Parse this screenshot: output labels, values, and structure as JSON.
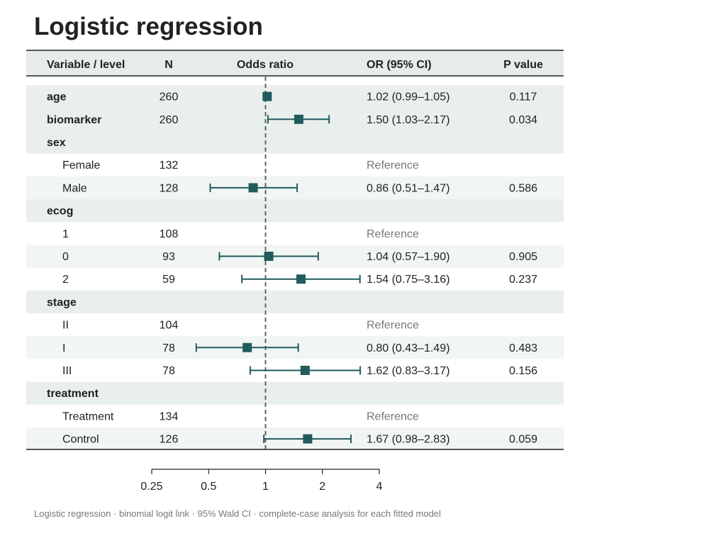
{
  "title": "Logistic regression",
  "caption": "Logistic regression · binomial logit link · 95% Wald CI · complete-case analysis for each fitted model",
  "columns": {
    "variable": "Variable / level",
    "n": "N",
    "or_plot": "Odds ratio",
    "or_ci": "OR (95% CI)",
    "p": "P value"
  },
  "colors": {
    "marker": "#215b5b",
    "ref_line": "#555555",
    "header_bg": "#e6ecea",
    "band_dark": "#e9efed",
    "band_light": "#f1f5f4",
    "reference_text": "#777777"
  },
  "chart_data": {
    "type": "forest",
    "x_scale": "log",
    "xlim": [
      0.25,
      4
    ],
    "x_ticks": [
      0.25,
      0.5,
      1,
      2,
      4
    ],
    "x_tick_labels": [
      "0.25",
      "0.5",
      "1",
      "2",
      "4"
    ],
    "ref_value": 1,
    "rows": [
      {
        "label": "age",
        "kind": "var",
        "n": "260",
        "or": 1.02,
        "lo": 0.99,
        "hi": 1.05,
        "ci_text": "1.02 (0.99–1.05)",
        "p": "0.117"
      },
      {
        "label": "biomarker",
        "kind": "var",
        "n": "260",
        "or": 1.5,
        "lo": 1.03,
        "hi": 2.17,
        "ci_text": "1.50 (1.03–2.17)",
        "p": "0.034"
      },
      {
        "label": "sex",
        "kind": "group",
        "n": "",
        "ci_text": "",
        "p": ""
      },
      {
        "label": "Female",
        "kind": "level",
        "n": "132",
        "ci_text": "Reference",
        "p": "",
        "reference": true
      },
      {
        "label": "Male",
        "kind": "level",
        "n": "128",
        "or": 0.86,
        "lo": 0.51,
        "hi": 1.47,
        "ci_text": "0.86 (0.51–1.47)",
        "p": "0.586"
      },
      {
        "label": "ecog",
        "kind": "group",
        "n": "",
        "ci_text": "",
        "p": ""
      },
      {
        "label": "1",
        "kind": "level",
        "n": "108",
        "ci_text": "Reference",
        "p": "",
        "reference": true
      },
      {
        "label": "0",
        "kind": "level",
        "n": "93",
        "or": 1.04,
        "lo": 0.57,
        "hi": 1.9,
        "ci_text": "1.04 (0.57–1.90)",
        "p": "0.905"
      },
      {
        "label": "2",
        "kind": "level",
        "n": "59",
        "or": 1.54,
        "lo": 0.75,
        "hi": 3.16,
        "ci_text": "1.54 (0.75–3.16)",
        "p": "0.237"
      },
      {
        "label": "stage",
        "kind": "group",
        "n": "",
        "ci_text": "",
        "p": ""
      },
      {
        "label": "II",
        "kind": "level",
        "n": "104",
        "ci_text": "Reference",
        "p": "",
        "reference": true
      },
      {
        "label": "I",
        "kind": "level",
        "n": "78",
        "or": 0.8,
        "lo": 0.43,
        "hi": 1.49,
        "ci_text": "0.80 (0.43–1.49)",
        "p": "0.483"
      },
      {
        "label": "III",
        "kind": "level",
        "n": "78",
        "or": 1.62,
        "lo": 0.83,
        "hi": 3.17,
        "ci_text": "1.62 (0.83–3.17)",
        "p": "0.156"
      },
      {
        "label": "treatment",
        "kind": "group",
        "n": "",
        "ci_text": "",
        "p": ""
      },
      {
        "label": "Treatment",
        "kind": "level",
        "n": "134",
        "ci_text": "Reference",
        "p": "",
        "reference": true
      },
      {
        "label": "Control",
        "kind": "level",
        "n": "126",
        "or": 1.67,
        "lo": 0.98,
        "hi": 2.83,
        "ci_text": "1.67 (0.98–2.83)",
        "p": "0.059"
      }
    ]
  }
}
